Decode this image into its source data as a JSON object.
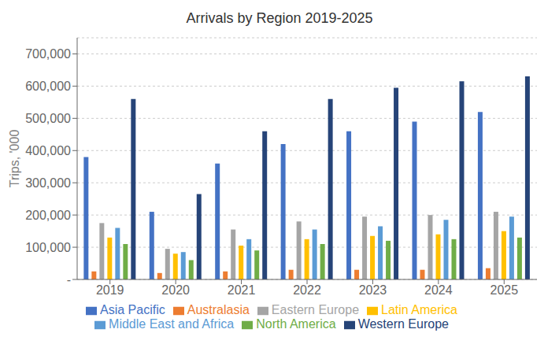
{
  "chart_data": {
    "type": "bar",
    "title": "Arrivals by Region 2019-2025",
    "ylabel": "Trips, '000",
    "categories": [
      "2019",
      "2020",
      "2021",
      "2022",
      "2023",
      "2024",
      "2025"
    ],
    "series": [
      {
        "name": "Asia Pacific",
        "color": "#4472C4",
        "values": [
          380000,
          210000,
          360000,
          420000,
          460000,
          490000,
          520000
        ]
      },
      {
        "name": "Australasia",
        "color": "#ED7D31",
        "values": [
          25000,
          20000,
          25000,
          30000,
          30000,
          30000,
          35000
        ]
      },
      {
        "name": "Eastern Europe",
        "color": "#A5A5A5",
        "values": [
          175000,
          95000,
          155000,
          180000,
          195000,
          200000,
          210000
        ]
      },
      {
        "name": "Latin America",
        "color": "#FFC000",
        "values": [
          130000,
          80000,
          105000,
          125000,
          135000,
          140000,
          150000
        ]
      },
      {
        "name": "Middle East and Africa",
        "color": "#5B9BD5",
        "values": [
          160000,
          85000,
          125000,
          155000,
          165000,
          185000,
          195000
        ]
      },
      {
        "name": "North America",
        "color": "#70AD47",
        "values": [
          110000,
          60000,
          90000,
          110000,
          120000,
          125000,
          130000
        ]
      },
      {
        "name": "Western Europe",
        "color": "#264478",
        "values": [
          560000,
          265000,
          460000,
          560000,
          595000,
          615000,
          630000
        ]
      }
    ],
    "ylim": [
      0,
      750000
    ],
    "yticks": [
      {
        "value": 0,
        "label": "-"
      },
      {
        "value": 100000,
        "label": "100,000"
      },
      {
        "value": 200000,
        "label": "200,000"
      },
      {
        "value": 300000,
        "label": "300,000"
      },
      {
        "value": 400000,
        "label": "400,000"
      },
      {
        "value": 500000,
        "label": "500,000"
      },
      {
        "value": 600000,
        "label": "600,000"
      },
      {
        "value": 700000,
        "label": "700,000"
      }
    ],
    "grid": true,
    "legend": "bottom"
  }
}
